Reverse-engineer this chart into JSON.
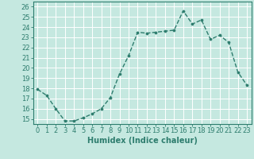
{
  "x": [
    0,
    1,
    2,
    3,
    4,
    5,
    6,
    7,
    8,
    9,
    10,
    11,
    12,
    13,
    14,
    15,
    16,
    17,
    18,
    19,
    20,
    21,
    22,
    23
  ],
  "y": [
    17.9,
    17.3,
    16.0,
    14.8,
    14.8,
    15.1,
    15.5,
    16.0,
    17.1,
    19.4,
    21.2,
    23.5,
    23.4,
    23.5,
    23.6,
    23.7,
    25.6,
    24.3,
    24.7,
    22.8,
    23.2,
    22.5,
    19.6,
    18.3
  ],
  "xlabel": "Humidex (Indice chaleur)",
  "xlim": [
    -0.5,
    23.5
  ],
  "ylim": [
    14.5,
    26.5
  ],
  "yticks": [
    15,
    16,
    17,
    18,
    19,
    20,
    21,
    22,
    23,
    24,
    25,
    26
  ],
  "xticks": [
    0,
    1,
    2,
    3,
    4,
    5,
    6,
    7,
    8,
    9,
    10,
    11,
    12,
    13,
    14,
    15,
    16,
    17,
    18,
    19,
    20,
    21,
    22,
    23
  ],
  "line_color": "#2e7d6e",
  "marker_color": "#2e7d6e",
  "bg_color": "#c5e8e0",
  "grid_color": "#ffffff",
  "axis_color": "#2e7d6e",
  "label_color": "#2e7d6e",
  "tick_label_color": "#2e7d6e",
  "font_size": 6,
  "xlabel_fontsize": 7,
  "line_width": 1.0,
  "marker_size": 2.2
}
